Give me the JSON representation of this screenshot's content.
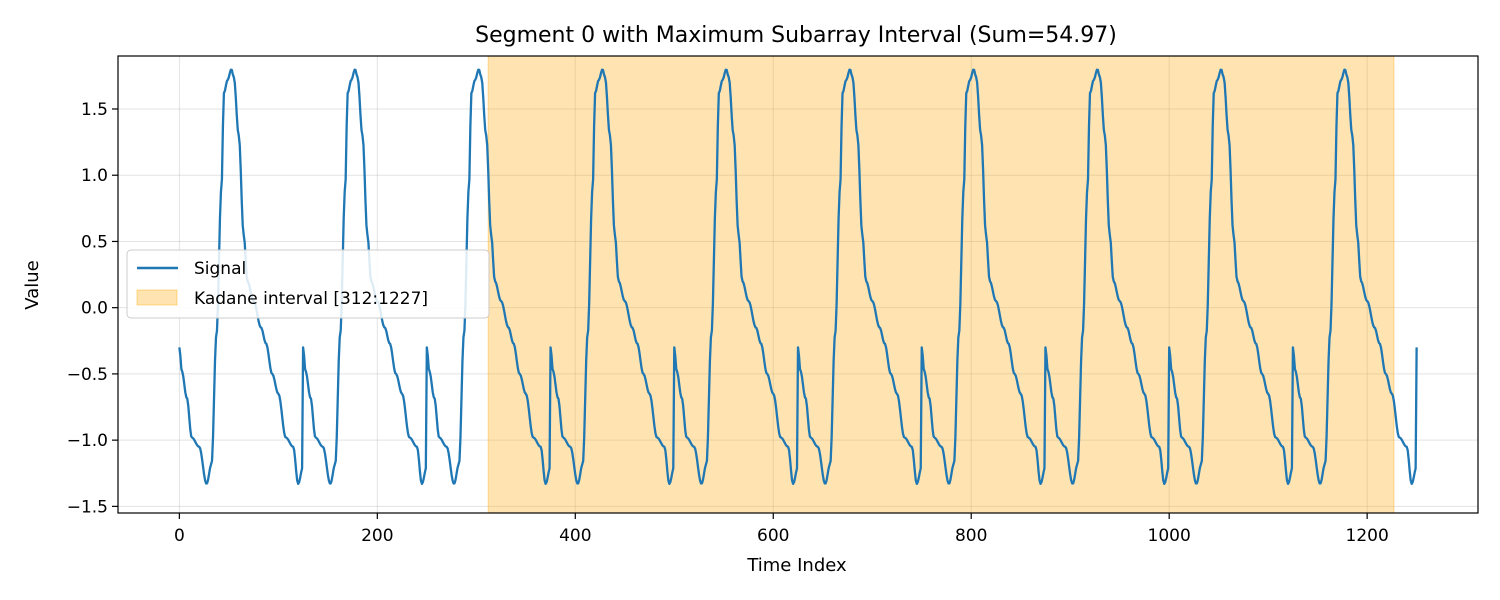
{
  "chart_data": {
    "type": "line",
    "title": "Segment 0 with Maximum Subarray Interval (Sum=54.97)",
    "xlabel": "Time Index",
    "ylabel": "Value",
    "xlim": [
      -62,
      1312
    ],
    "ylim": [
      -1.55,
      1.9
    ],
    "xticks": [
      0,
      200,
      400,
      600,
      800,
      1000,
      1200
    ],
    "yticks": [
      -1.5,
      -1.0,
      -0.5,
      0.0,
      0.5,
      1.0,
      1.5
    ],
    "xtick_labels": [
      "0",
      "200",
      "400",
      "600",
      "800",
      "1000",
      "1200"
    ],
    "ytick_labels": [
      "−1.5",
      "−1.0",
      "−0.5",
      "0.0",
      "0.5",
      "1.0",
      "1.5"
    ],
    "grid": true,
    "legend_position": "center-left",
    "series": [
      {
        "name": "Signal",
        "color": "#1f77b4",
        "x_start": 0,
        "x_end": 1250,
        "period": 125,
        "waveform_phase": [
          0,
          0.02,
          0.06,
          0.1,
          0.16,
          0.22,
          0.26,
          0.3,
          0.34,
          0.36,
          0.39,
          0.42,
          0.44,
          0.48,
          0.52,
          0.55,
          0.6,
          0.66,
          0.7,
          0.75,
          0.8,
          0.86,
          0.92,
          0.96,
          1.0
        ],
        "waveform_value": [
          -0.3,
          -0.48,
          -0.68,
          -0.98,
          -1.05,
          -1.33,
          -1.18,
          -0.2,
          0.9,
          1.62,
          1.72,
          1.8,
          1.74,
          1.3,
          0.55,
          0.2,
          0.05,
          -0.15,
          -0.27,
          -0.5,
          -0.65,
          -0.98,
          -1.05,
          -1.33,
          -1.2
        ]
      }
    ],
    "interval": {
      "name": "Kadane interval [312:1227]",
      "start": 312,
      "end": 1227,
      "color": "#ffa500",
      "opacity": 0.3
    }
  }
}
